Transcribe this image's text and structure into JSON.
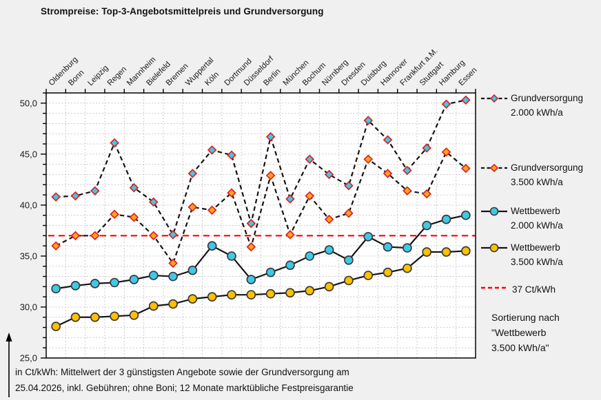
{
  "title": "Strompreise: Top-3-Angebotsmittelpreis und Grundversorgung",
  "footnote": {
    "line1": "in Ct/kWh: Mittelwert der 3 günstigsten Angebote sowie der Grundversorgung am",
    "line2": "25.04.2026, inkl. Gebühren; ohne Boni; 12 Monate marktübliche Festpreisgarantie"
  },
  "legend": {
    "items": [
      {
        "line1": "Grundversorgung",
        "line2": "2.000 kWh/a"
      },
      {
        "line1": "Grundversorgung",
        "line2": "3.500 kWh/a"
      },
      {
        "line1": "Wettbewerb",
        "line2": "2.000 kWh/a"
      },
      {
        "line1": "Wettbewerb",
        "line2": "3.500 kWh/a"
      }
    ],
    "threshold_label": "37 Ct/kWh",
    "sort_note": [
      "Sortierung nach",
      "\"Wettbewerb",
      "3.500 kWh/a\""
    ]
  },
  "colors": {
    "background": "#f0f0f0",
    "plot_bg": "#ffffff",
    "grid": "#c9c9c9",
    "axis": "#000000",
    "text": "#1a1a1a",
    "threshold_red": "#ff0000",
    "line_black": "#141414",
    "cyan_fill": "#3fc8e8",
    "orange_fill": "#ffa41e",
    "gold_fill": "#ffc000",
    "diamond_stroke": "#e02020",
    "circle_stroke": "#3a3a3a"
  },
  "chart_data": {
    "type": "line",
    "unit": "Ct/kWh",
    "categories": [
      "Oldenburg",
      "Bonn",
      "Leipzig",
      "Regen",
      "Mannheim",
      "Bielefeld",
      "Bremen",
      "Wuppertal",
      "Köln",
      "Dortmund",
      "Düsseldorf",
      "Berlin",
      "München",
      "Bochum",
      "Nürnberg",
      "Dresden",
      "Duisburg",
      "Hannover",
      "Frankfurt a.M.",
      "Stuttgart",
      "Hamburg",
      "Essen"
    ],
    "series": [
      {
        "name": "Grundversorgung 2.000 kWh/a",
        "line_style": "dashed",
        "marker": "diamond",
        "marker_fill_key": "cyan_fill",
        "marker_stroke_key": "diamond_stroke",
        "values": [
          40.8,
          40.9,
          41.4,
          46.1,
          41.7,
          40.3,
          37.1,
          43.1,
          45.4,
          44.9,
          38.2,
          46.7,
          40.6,
          44.5,
          43.0,
          41.9,
          48.3,
          46.4,
          43.4,
          45.6,
          49.9,
          50.3
        ]
      },
      {
        "name": "Grundversorgung 3.500 kWh/a",
        "line_style": "dashed",
        "marker": "diamond",
        "marker_fill_key": "orange_fill",
        "marker_stroke_key": "diamond_stroke",
        "values": [
          36.0,
          37.0,
          37.0,
          39.1,
          38.8,
          37.0,
          34.3,
          39.8,
          39.5,
          41.2,
          35.9,
          42.9,
          37.1,
          40.9,
          38.6,
          39.2,
          44.5,
          43.1,
          41.4,
          41.1,
          45.2,
          43.6
        ]
      },
      {
        "name": "Wettbewerb 2.000 kWh/a",
        "line_style": "solid",
        "marker": "circle",
        "marker_fill_key": "cyan_fill",
        "marker_stroke_key": "circle_stroke",
        "values": [
          31.8,
          32.1,
          32.3,
          32.4,
          32.7,
          33.1,
          33.0,
          33.6,
          36.0,
          35.0,
          32.7,
          33.4,
          34.1,
          35.0,
          35.6,
          34.6,
          36.9,
          35.9,
          35.8,
          38.0,
          38.6,
          39.0
        ]
      },
      {
        "name": "Wettbewerb 3.500 kWh/a",
        "line_style": "solid",
        "marker": "circle",
        "marker_fill_key": "gold_fill",
        "marker_stroke_key": "circle_stroke",
        "values": [
          28.1,
          29.0,
          29.0,
          29.1,
          29.2,
          30.1,
          30.3,
          30.8,
          31.0,
          31.2,
          31.2,
          31.3,
          31.4,
          31.6,
          32.0,
          32.6,
          33.1,
          33.4,
          33.8,
          35.4,
          35.4,
          35.5
        ]
      }
    ],
    "threshold": {
      "value": 37,
      "label": "37 Ct/kWh"
    },
    "ylim": [
      25,
      51
    ],
    "yticks": [
      25,
      30,
      35,
      40,
      45,
      50
    ],
    "ytick_labels": [
      "25,0",
      "30,0",
      "35,0",
      "40,0",
      "45,0",
      "50,0"
    ],
    "grid": true,
    "legend_position": "right",
    "sorted_by": "Wettbewerb 3.500 kWh/a"
  }
}
